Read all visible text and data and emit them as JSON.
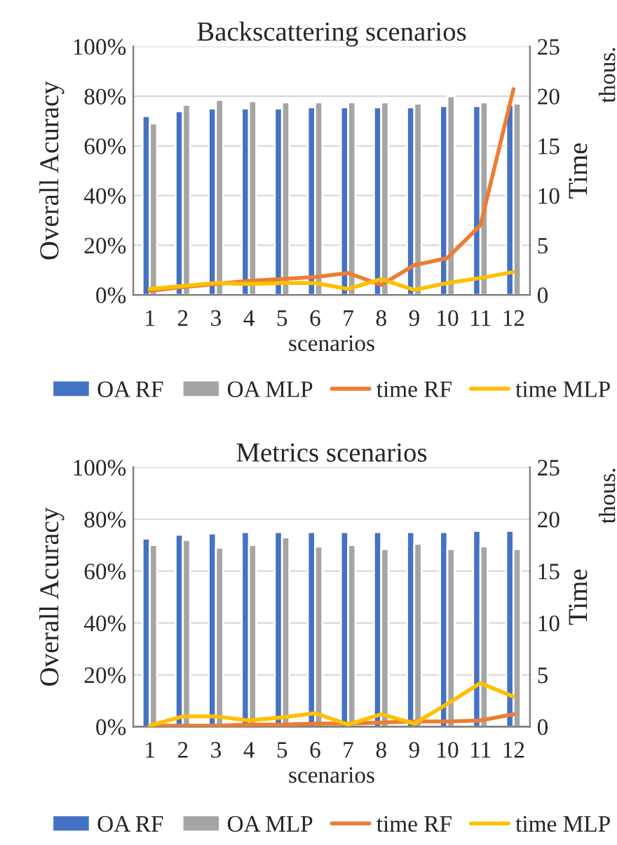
{
  "chart_data": [
    {
      "type": "bar",
      "title": "Backscattering scenarios",
      "xlabel": "scenarios",
      "ylabel": "Overall Acuracy",
      "y2label": "Time",
      "annotations": [
        "thous."
      ],
      "categories": [
        "1",
        "2",
        "3",
        "4",
        "5",
        "6",
        "7",
        "8",
        "9",
        "10",
        "11",
        "12"
      ],
      "series": [
        {
          "name": "OA RF",
          "color": "#4472c4",
          "values": [
            72,
            74,
            75,
            75,
            75,
            75.5,
            75.5,
            75.5,
            75.5,
            76,
            76,
            76.5
          ]
        },
        {
          "name": "OA MLP",
          "color": "#a5a5a5",
          "values": [
            69,
            76.5,
            78.5,
            78,
            77.5,
            77.5,
            77.5,
            77.5,
            77,
            80,
            77.5,
            77
          ]
        },
        {
          "name": "time RF",
          "type": "line",
          "axis": "y2",
          "color": "#ed7d31",
          "values": [
            0.4,
            0.8,
            1.1,
            1.4,
            1.6,
            1.8,
            2.2,
            1.0,
            3.0,
            3.7,
            7.0,
            20.7
          ]
        },
        {
          "name": "time MLP",
          "type": "line",
          "axis": "y2",
          "color": "#ffc000",
          "values": [
            0.6,
            0.9,
            1.2,
            1.1,
            1.2,
            1.2,
            0.6,
            1.6,
            0.5,
            1.2,
            1.7,
            2.3
          ]
        }
      ],
      "ylim": [
        0,
        100
      ],
      "yticks": [
        {
          "value": 0,
          "label": "0%"
        },
        {
          "value": 20,
          "label": "20%"
        },
        {
          "value": 40,
          "label": "40%"
        },
        {
          "value": 60,
          "label": "60%"
        },
        {
          "value": 80,
          "label": "80%"
        },
        {
          "value": 100,
          "label": "100%"
        }
      ],
      "y2lim": [
        0,
        25
      ],
      "y2ticks": [
        0,
        5,
        10,
        15,
        20,
        25
      ],
      "grid": "y",
      "legend": "bottom",
      "marker": "none",
      "line_style": "solid"
    },
    {
      "type": "bar",
      "title": "Metrics scenarios",
      "xlabel": "scenarios",
      "ylabel": "Overall Acuracy",
      "y2label": "Time",
      "annotations": [
        "thous."
      ],
      "categories": [
        "1",
        "2",
        "3",
        "4",
        "5",
        "6",
        "7",
        "8",
        "9",
        "10",
        "11",
        "12"
      ],
      "series": [
        {
          "name": "OA RF",
          "color": "#4472c4",
          "values": [
            72.5,
            74,
            74.5,
            75,
            75,
            75,
            75,
            75,
            75,
            75,
            75.5,
            75.5
          ]
        },
        {
          "name": "OA MLP",
          "color": "#a5a5a5",
          "values": [
            70,
            72,
            69,
            70,
            73,
            69.5,
            70,
            68.5,
            70.5,
            68.5,
            69.5,
            68.5
          ]
        },
        {
          "name": "time RF",
          "type": "line",
          "axis": "y2",
          "color": "#ed7d31",
          "values": [
            0.1,
            0.1,
            0.1,
            0.2,
            0.2,
            0.3,
            0.3,
            0.4,
            0.5,
            0.5,
            0.6,
            1.2
          ]
        },
        {
          "name": "time MLP",
          "type": "line",
          "axis": "y2",
          "color": "#ffc000",
          "values": [
            0.1,
            1.0,
            1.0,
            0.6,
            0.9,
            1.3,
            0.2,
            1.2,
            0.3,
            2.2,
            4.2,
            2.9
          ]
        }
      ],
      "ylim": [
        0,
        100
      ],
      "yticks": [
        {
          "value": 0,
          "label": "0%"
        },
        {
          "value": 20,
          "label": "20%"
        },
        {
          "value": 40,
          "label": "40%"
        },
        {
          "value": 60,
          "label": "60%"
        },
        {
          "value": 80,
          "label": "80%"
        },
        {
          "value": 100,
          "label": "100%"
        }
      ],
      "y2lim": [
        0,
        25
      ],
      "y2ticks": [
        0,
        5,
        10,
        15,
        20,
        25
      ],
      "grid": "y",
      "legend": "bottom",
      "marker": "none",
      "line_style": "solid"
    }
  ]
}
